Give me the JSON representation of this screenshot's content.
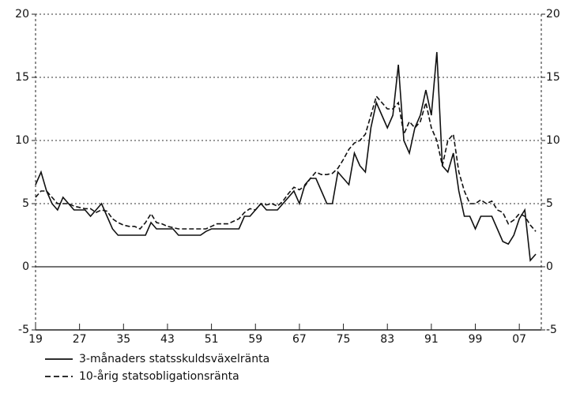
{
  "chart_data": {
    "type": "line",
    "x": [
      1919,
      1920,
      1921,
      1922,
      1923,
      1924,
      1925,
      1926,
      1927,
      1928,
      1929,
      1930,
      1931,
      1932,
      1933,
      1934,
      1935,
      1936,
      1937,
      1938,
      1939,
      1940,
      1941,
      1942,
      1943,
      1944,
      1945,
      1946,
      1947,
      1948,
      1949,
      1950,
      1951,
      1952,
      1953,
      1954,
      1955,
      1956,
      1957,
      1958,
      1959,
      1960,
      1961,
      1962,
      1963,
      1964,
      1965,
      1966,
      1967,
      1968,
      1969,
      1970,
      1971,
      1972,
      1973,
      1974,
      1975,
      1976,
      1977,
      1978,
      1979,
      1980,
      1981,
      1982,
      1983,
      1984,
      1985,
      1986,
      1987,
      1988,
      1989,
      1990,
      1991,
      1992,
      1993,
      1994,
      1995,
      1996,
      1997,
      1998,
      1999,
      2000,
      2001,
      2002,
      2003,
      2004,
      2005,
      2006,
      2007,
      2008,
      2009,
      2010
    ],
    "series": [
      {
        "name": "3-månaders statsskuldsväxelränta",
        "color": "#111111",
        "dash": "solid",
        "values": [
          6.5,
          7.5,
          6,
          5,
          4.5,
          5.5,
          5,
          4.5,
          4.5,
          4.5,
          4,
          4.5,
          5,
          4,
          3,
          2.5,
          2.5,
          2.5,
          2.5,
          2.5,
          2.5,
          3.5,
          3,
          3,
          3,
          3,
          2.5,
          2.5,
          2.5,
          2.5,
          2.5,
          2.8,
          3,
          3,
          3,
          3,
          3,
          3,
          4,
          4,
          4.5,
          5,
          4.5,
          4.5,
          4.5,
          5,
          5.5,
          6,
          5,
          6.5,
          7,
          7,
          6,
          5,
          5,
          7.5,
          7,
          6.5,
          9,
          8,
          7.5,
          11,
          13,
          12,
          11,
          12,
          16,
          10,
          9,
          11,
          12,
          14,
          12,
          17,
          8,
          7.5,
          9,
          6,
          4,
          4,
          3,
          4,
          4,
          4,
          3,
          2,
          1.8,
          2.5,
          3.8,
          4.5,
          0.5,
          1
        ]
      },
      {
        "name": "10-årig statsobligationsränta",
        "color": "#111111",
        "dash": "dashed",
        "values": [
          5.5,
          6,
          6,
          5.5,
          5,
          5,
          5,
          4.8,
          4.7,
          4.6,
          4.6,
          4.3,
          4.5,
          4.4,
          3.8,
          3.5,
          3.3,
          3.2,
          3.2,
          3,
          3.5,
          4.2,
          3.5,
          3.4,
          3.2,
          3.1,
          3,
          3,
          3,
          3,
          3,
          3,
          3.2,
          3.4,
          3.4,
          3.4,
          3.6,
          3.8,
          4.3,
          4.6,
          4.5,
          5,
          4.9,
          5,
          4.8,
          5.2,
          5.8,
          6.3,
          6.1,
          6.4,
          7,
          7.5,
          7.3,
          7.3,
          7.4,
          7.8,
          8.5,
          9.3,
          9.8,
          10,
          10.5,
          12,
          13.5,
          13,
          12.5,
          12.5,
          13,
          10.5,
          11.5,
          11,
          11.5,
          13,
          11,
          10,
          8,
          10,
          10.5,
          7.5,
          6,
          5,
          5,
          5.3,
          5,
          5.2,
          4.5,
          4.3,
          3.4,
          3.7,
          4.2,
          4,
          3.3,
          2.8
        ]
      }
    ],
    "xlim": [
      1919,
      2011
    ],
    "xticks": [
      {
        "value": 1919,
        "label": "19"
      },
      {
        "value": 1927,
        "label": "27"
      },
      {
        "value": 1935,
        "label": "35"
      },
      {
        "value": 1943,
        "label": "43"
      },
      {
        "value": 1951,
        "label": "51"
      },
      {
        "value": 1959,
        "label": "59"
      },
      {
        "value": 1967,
        "label": "67"
      },
      {
        "value": 1975,
        "label": "75"
      },
      {
        "value": 1983,
        "label": "83"
      },
      {
        "value": 1991,
        "label": "91"
      },
      {
        "value": 1999,
        "label": "99"
      },
      {
        "value": 2007,
        "label": "07"
      }
    ],
    "ylim": [
      -5,
      20
    ],
    "yticks": [
      -5,
      0,
      5,
      10,
      15,
      20
    ],
    "grid": true,
    "zero_line": true,
    "legend": "bottom-left"
  }
}
